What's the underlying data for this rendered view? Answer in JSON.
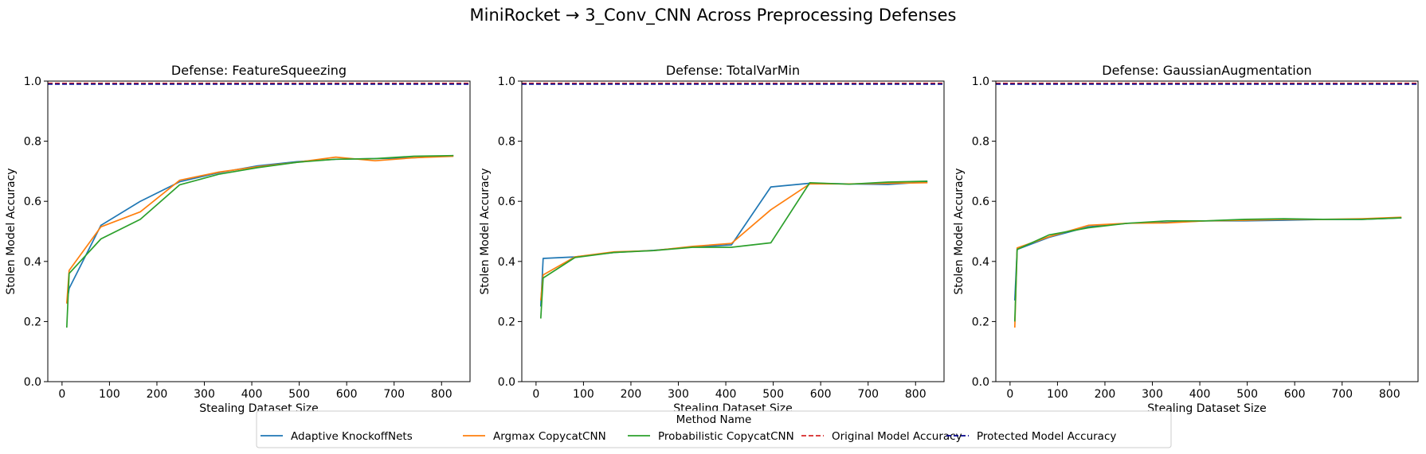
{
  "figure": {
    "suptitle": "MiniRocket → 3_Conv_CNN Across Preprocessing Defenses"
  },
  "legend": {
    "title": "Method Name",
    "placement": "bottom-center",
    "entries": [
      {
        "label": "Adaptive KnockoffNets",
        "color": "#1f77b4",
        "style": "solid"
      },
      {
        "label": "Argmax CopycatCNN",
        "color": "#ff7f0e",
        "style": "solid"
      },
      {
        "label": "Probabilistic CopycatCNN",
        "color": "#2ca02c",
        "style": "solid"
      },
      {
        "label": "Original Model Accuracy",
        "color": "#d62728",
        "style": "dashed"
      },
      {
        "label": "Protected Model Accuracy",
        "color": "#00008b",
        "style": "dashed"
      }
    ]
  },
  "chart_data": [
    {
      "type": "line",
      "title": "Defense: FeatureSqueezing",
      "xlabel": "Stealing Dataset Size",
      "ylabel": "Stolen Model Accuracy",
      "xlim": [
        -30,
        860
      ],
      "ylim": [
        0,
        1
      ],
      "xticks": [
        0,
        100,
        200,
        300,
        400,
        500,
        600,
        700,
        800
      ],
      "yticks": [
        0.0,
        0.2,
        0.4,
        0.6,
        0.8,
        1.0
      ],
      "hlines": [
        {
          "name": "Original Model Accuracy",
          "value": 0.993
        },
        {
          "name": "Protected Model Accuracy",
          "value": 0.99
        }
      ],
      "series": [
        {
          "name": "Adaptive KnockoffNets",
          "x": [
            10,
            15,
            82,
            165,
            248,
            330,
            412,
            495,
            577,
            660,
            742,
            825
          ],
          "y": [
            0.26,
            0.31,
            0.52,
            0.6,
            0.665,
            0.695,
            0.718,
            0.732,
            0.74,
            0.742,
            0.745,
            0.752
          ]
        },
        {
          "name": "Argmax CopycatCNN",
          "x": [
            10,
            15,
            82,
            165,
            248,
            330,
            412,
            495,
            577,
            660,
            742,
            825
          ],
          "y": [
            0.26,
            0.37,
            0.515,
            0.565,
            0.67,
            0.697,
            0.715,
            0.73,
            0.747,
            0.735,
            0.745,
            0.75
          ]
        },
        {
          "name": "Probabilistic CopycatCNN",
          "x": [
            10,
            15,
            82,
            165,
            248,
            330,
            412,
            495,
            577,
            660,
            742,
            825
          ],
          "y": [
            0.18,
            0.36,
            0.475,
            0.54,
            0.655,
            0.69,
            0.712,
            0.73,
            0.74,
            0.742,
            0.75,
            0.752
          ]
        }
      ]
    },
    {
      "type": "line",
      "title": "Defense: TotalVarMin",
      "xlabel": "Stealing Dataset Size",
      "ylabel": "Stolen Model Accuracy",
      "xlim": [
        -30,
        860
      ],
      "ylim": [
        0,
        1
      ],
      "xticks": [
        0,
        100,
        200,
        300,
        400,
        500,
        600,
        700,
        800
      ],
      "yticks": [
        0.0,
        0.2,
        0.4,
        0.6,
        0.8,
        1.0
      ],
      "hlines": [
        {
          "name": "Original Model Accuracy",
          "value": 0.993
        },
        {
          "name": "Protected Model Accuracy",
          "value": 0.99
        }
      ],
      "series": [
        {
          "name": "Adaptive KnockoffNets",
          "x": [
            10,
            15,
            82,
            165,
            248,
            330,
            412,
            495,
            577,
            660,
            742,
            825
          ],
          "y": [
            0.25,
            0.41,
            0.415,
            0.43,
            0.437,
            0.448,
            0.455,
            0.648,
            0.66,
            0.658,
            0.656,
            0.665
          ]
        },
        {
          "name": "Argmax CopycatCNN",
          "x": [
            10,
            15,
            82,
            165,
            248,
            330,
            412,
            495,
            577,
            660,
            742,
            825
          ],
          "y": [
            0.27,
            0.355,
            0.415,
            0.432,
            0.436,
            0.45,
            0.46,
            0.572,
            0.658,
            0.658,
            0.66,
            0.662
          ]
        },
        {
          "name": "Probabilistic CopycatCNN",
          "x": [
            10,
            15,
            82,
            165,
            248,
            330,
            412,
            495,
            577,
            660,
            742,
            825
          ],
          "y": [
            0.21,
            0.345,
            0.413,
            0.43,
            0.436,
            0.447,
            0.447,
            0.462,
            0.662,
            0.657,
            0.664,
            0.667
          ]
        }
      ]
    },
    {
      "type": "line",
      "title": "Defense: GaussianAugmentation",
      "xlabel": "Stealing Dataset Size",
      "ylabel": "Stolen Model Accuracy",
      "xlim": [
        -30,
        860
      ],
      "ylim": [
        0,
        1
      ],
      "xticks": [
        0,
        100,
        200,
        300,
        400,
        500,
        600,
        700,
        800
      ],
      "yticks": [
        0.0,
        0.2,
        0.4,
        0.6,
        0.8,
        1.0
      ],
      "hlines": [
        {
          "name": "Original Model Accuracy",
          "value": 0.993
        },
        {
          "name": "Protected Model Accuracy",
          "value": 0.99
        }
      ],
      "series": [
        {
          "name": "Adaptive KnockoffNets",
          "x": [
            10,
            15,
            82,
            165,
            248,
            330,
            412,
            495,
            577,
            660,
            742,
            825
          ],
          "y": [
            0.27,
            0.44,
            0.48,
            0.515,
            0.527,
            0.53,
            0.535,
            0.535,
            0.537,
            0.54,
            0.54,
            0.545
          ]
        },
        {
          "name": "Argmax CopycatCNN",
          "x": [
            10,
            15,
            82,
            165,
            248,
            330,
            412,
            495,
            577,
            660,
            742,
            825
          ],
          "y": [
            0.18,
            0.445,
            0.482,
            0.52,
            0.527,
            0.528,
            0.535,
            0.537,
            0.54,
            0.54,
            0.542,
            0.547
          ]
        },
        {
          "name": "Probabilistic CopycatCNN",
          "x": [
            10,
            15,
            82,
            165,
            248,
            330,
            412,
            495,
            577,
            660,
            742,
            825
          ],
          "y": [
            0.2,
            0.44,
            0.488,
            0.512,
            0.527,
            0.535,
            0.535,
            0.54,
            0.542,
            0.54,
            0.54,
            0.545
          ]
        }
      ]
    }
  ]
}
